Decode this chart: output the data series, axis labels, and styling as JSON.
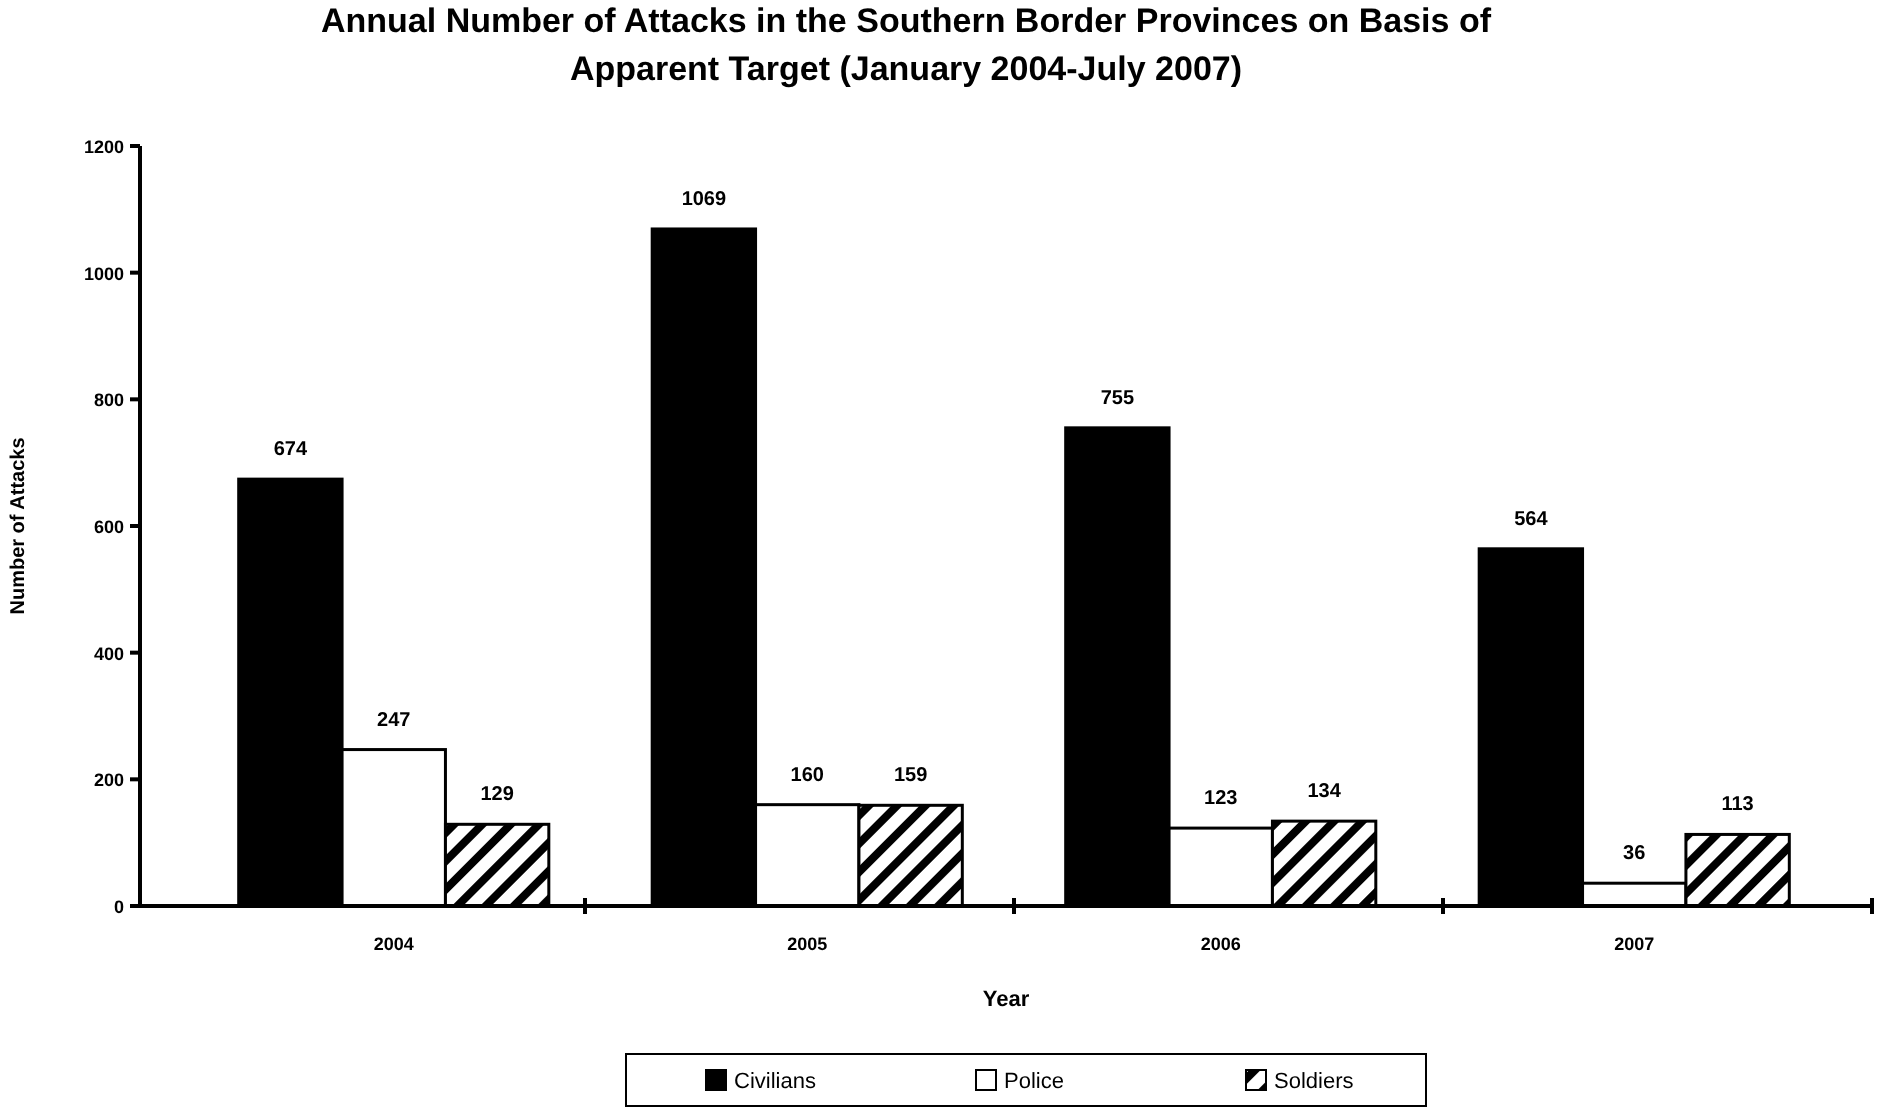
{
  "chart_data": {
    "type": "bar",
    "title": "Annual Number of Attacks in the Southern Border Provinces on Basis of Apparent Target (January 2004-July 2007)",
    "xlabel": "Year",
    "ylabel": "Number of Attacks",
    "categories": [
      "2004",
      "2005",
      "2006",
      "2007"
    ],
    "series": [
      {
        "name": "Civilians",
        "color": "#000000",
        "values": [
          674,
          1069,
          755,
          564
        ]
      },
      {
        "name": "Police",
        "color": "#ffffff",
        "values": [
          247,
          160,
          123,
          36
        ]
      },
      {
        "name": "Soldiers",
        "color": "#000000",
        "values": [
          129,
          159,
          134,
          113
        ]
      }
    ],
    "ylim": [
      0,
      1200
    ],
    "yticks": [
      0,
      200,
      400,
      600,
      800,
      1000,
      1200
    ],
    "data_labels": true,
    "legend": "bottom"
  }
}
